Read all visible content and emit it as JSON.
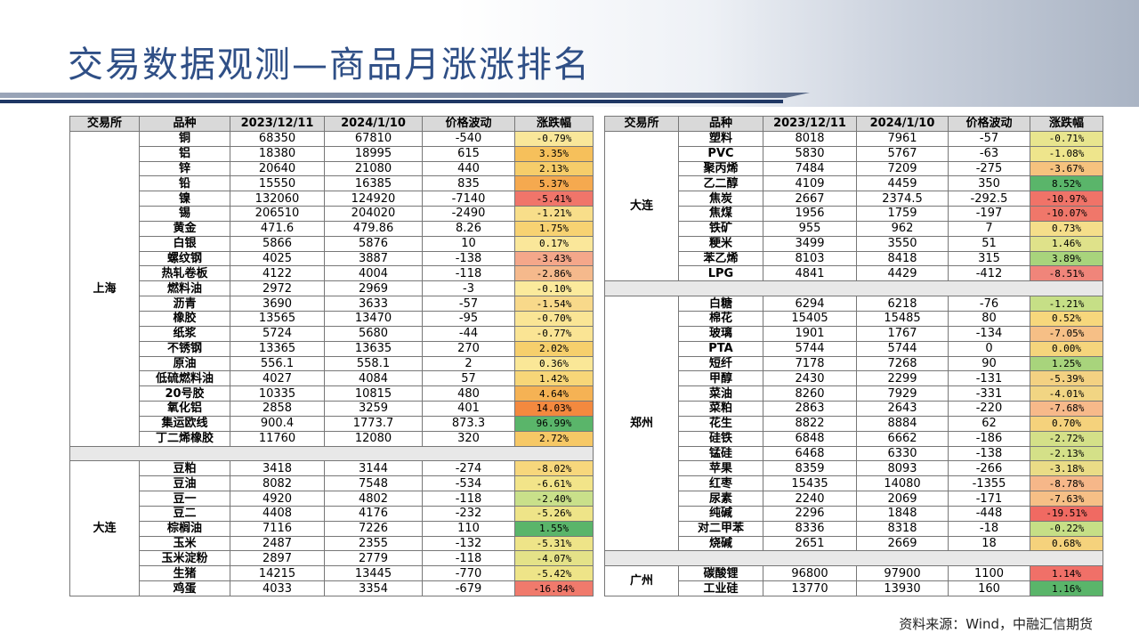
{
  "title": "交易数据观测—商品月涨涨排名",
  "source": "资料来源：Wind，中融汇信期货",
  "headers": [
    "交易所",
    "品种",
    "2023/12/11",
    "2024/1/10",
    "价格波动",
    "涨跌幅"
  ],
  "left_groups": [
    {
      "exchange": "上海",
      "rows": [
        [
          "铜",
          "68350",
          "67810",
          "-540",
          "-0.79%",
          "#f9e79a"
        ],
        [
          "铝",
          "18380",
          "18995",
          "615",
          "3.35%",
          "#f6c05b"
        ],
        [
          "锌",
          "20640",
          "21080",
          "440",
          "2.13%",
          "#f6cd6a"
        ],
        [
          "铅",
          "15550",
          "16385",
          "835",
          "5.37%",
          "#f5a94f"
        ],
        [
          "镍",
          "132060",
          "124920",
          "-7140",
          "-5.41%",
          "#f0756a"
        ],
        [
          "锡",
          "206510",
          "204020",
          "-2490",
          "-1.21%",
          "#f8de8a"
        ],
        [
          "黄金",
          "471.6",
          "479.86",
          "8.26",
          "1.75%",
          "#f7d272"
        ],
        [
          "白银",
          "5866",
          "5876",
          "10",
          "0.17%",
          "#fae79a"
        ],
        [
          "螺纹钢",
          "4025",
          "3887",
          "-138",
          "-3.43%",
          "#f4a78a"
        ],
        [
          "热轧卷板",
          "4122",
          "4004",
          "-118",
          "-2.86%",
          "#f5b98c"
        ],
        [
          "燃料油",
          "2972",
          "2969",
          "-3",
          "-0.10%",
          "#fbea9c"
        ],
        [
          "沥青",
          "3690",
          "3633",
          "-57",
          "-1.54%",
          "#f8d98a"
        ],
        [
          "橡胶",
          "13565",
          "13470",
          "-95",
          "-0.70%",
          "#fae595"
        ],
        [
          "纸浆",
          "5724",
          "5680",
          "-44",
          "-0.77%",
          "#fae494"
        ],
        [
          "不锈钢",
          "13365",
          "13635",
          "270",
          "2.02%",
          "#f6cf6c"
        ],
        [
          "原油",
          "556.1",
          "558.1",
          "2",
          "0.36%",
          "#fae797"
        ],
        [
          "低硫燃料油",
          "4027",
          "4084",
          "57",
          "1.42%",
          "#f7d678"
        ],
        [
          "20号胶",
          "10335",
          "10815",
          "480",
          "4.64%",
          "#f5b254"
        ],
        [
          "氧化铝",
          "2858",
          "3259",
          "401",
          "14.03%",
          "#f3893f"
        ],
        [
          "集运欧线",
          "900.4",
          "1773.7",
          "873.3",
          "96.99%",
          "#5ab56a"
        ],
        [
          "丁二烯橡胶",
          "11760",
          "12080",
          "320",
          "2.72%",
          "#f6c866"
        ]
      ]
    },
    {
      "exchange": "大连",
      "rows": [
        [
          "豆粕",
          "3418",
          "3144",
          "-274",
          "-8.02%",
          "#f7d77c"
        ],
        [
          "豆油",
          "8082",
          "7548",
          "-534",
          "-6.61%",
          "#f2e489"
        ],
        [
          "豆一",
          "4920",
          "4802",
          "-118",
          "-2.40%",
          "#c9e08a"
        ],
        [
          "豆二",
          "4408",
          "4176",
          "-232",
          "-5.26%",
          "#eee488"
        ],
        [
          "棕榈油",
          "7116",
          "7226",
          "110",
          "1.55%",
          "#5ab56a"
        ],
        [
          "玉米",
          "2487",
          "2355",
          "-132",
          "-5.31%",
          "#eee488"
        ],
        [
          "玉米淀粉",
          "2897",
          "2779",
          "-118",
          "-4.07%",
          "#e4e288"
        ],
        [
          "生猪",
          "14215",
          "13445",
          "-770",
          "-5.42%",
          "#eee488"
        ],
        [
          "鸡蛋",
          "4033",
          "3354",
          "-679",
          "-16.84%",
          "#f07a6c"
        ]
      ]
    }
  ],
  "right_groups": [
    {
      "exchange": "大连",
      "rows": [
        [
          "塑料",
          "8018",
          "7961",
          "-57",
          "-0.71%",
          "#e8e58e"
        ],
        [
          "PVC",
          "5830",
          "5767",
          "-63",
          "-1.08%",
          "#eee58c"
        ],
        [
          "聚丙烯",
          "7484",
          "7209",
          "-275",
          "-3.67%",
          "#f6c27e"
        ],
        [
          "乙二醇",
          "4109",
          "4459",
          "350",
          "8.52%",
          "#5ab56a"
        ],
        [
          "焦炭",
          "2667",
          "2374.5",
          "-292.5",
          "-10.97%",
          "#f07368"
        ],
        [
          "焦煤",
          "1956",
          "1759",
          "-197",
          "-10.07%",
          "#f0776a"
        ],
        [
          "铁矿",
          "955",
          "962",
          "7",
          "0.73%",
          "#f5de8a"
        ],
        [
          "粳米",
          "3499",
          "3550",
          "51",
          "1.46%",
          "#dfe28a"
        ],
        [
          "苯乙烯",
          "8103",
          "8418",
          "315",
          "3.89%",
          "#a8d47c"
        ],
        [
          "LPG",
          "4841",
          "4429",
          "-412",
          "-8.51%",
          "#f0857a"
        ]
      ]
    },
    {
      "exchange": "郑州",
      "rows": [
        [
          "白糖",
          "6294",
          "6218",
          "-76",
          "-1.21%",
          "#c6df86"
        ],
        [
          "棉花",
          "15405",
          "15485",
          "80",
          "0.52%",
          "#f7d77c"
        ],
        [
          "玻璃",
          "1901",
          "1767",
          "-134",
          "-7.05%",
          "#f6bf86"
        ],
        [
          "PTA",
          "5744",
          "5744",
          "0",
          "0.00%",
          "#f5d57c"
        ],
        [
          "短纤",
          "7178",
          "7268",
          "90",
          "1.25%",
          "#a8d47c"
        ],
        [
          "甲醇",
          "2430",
          "2299",
          "-131",
          "-5.39%",
          "#f3d182"
        ],
        [
          "菜油",
          "8260",
          "7929",
          "-331",
          "-4.01%",
          "#f1d583"
        ],
        [
          "菜粕",
          "2863",
          "2643",
          "-220",
          "-7.68%",
          "#f7b98a"
        ],
        [
          "花生",
          "8822",
          "8884",
          "62",
          "0.70%",
          "#f5d27c"
        ],
        [
          "硅铁",
          "6848",
          "6662",
          "-186",
          "-2.72%",
          "#d4e088"
        ],
        [
          "锰硅",
          "6468",
          "6330",
          "-138",
          "-2.13%",
          "#d4e088"
        ],
        [
          "苹果",
          "8359",
          "8093",
          "-266",
          "-3.18%",
          "#eadc86"
        ],
        [
          "红枣",
          "15435",
          "14080",
          "-1355",
          "-8.78%",
          "#f6b789"
        ],
        [
          "尿素",
          "2240",
          "2069",
          "-171",
          "-7.63%",
          "#f6bf86"
        ],
        [
          "纯碱",
          "2296",
          "1848",
          "-448",
          "-19.51%",
          "#f06a62"
        ],
        [
          "对二甲苯",
          "8336",
          "8318",
          "-18",
          "-0.22%",
          "#c6df86"
        ],
        [
          "烧碱",
          "2651",
          "2669",
          "18",
          "0.68%",
          "#f5d27c"
        ]
      ]
    },
    {
      "exchange": "广州",
      "rows": [
        [
          "碳酸锂",
          "96800",
          "97900",
          "1100",
          "1.14%",
          "#f07068"
        ],
        [
          "工业硅",
          "13770",
          "13930",
          "160",
          "1.16%",
          "#5ab56a"
        ]
      ]
    }
  ]
}
